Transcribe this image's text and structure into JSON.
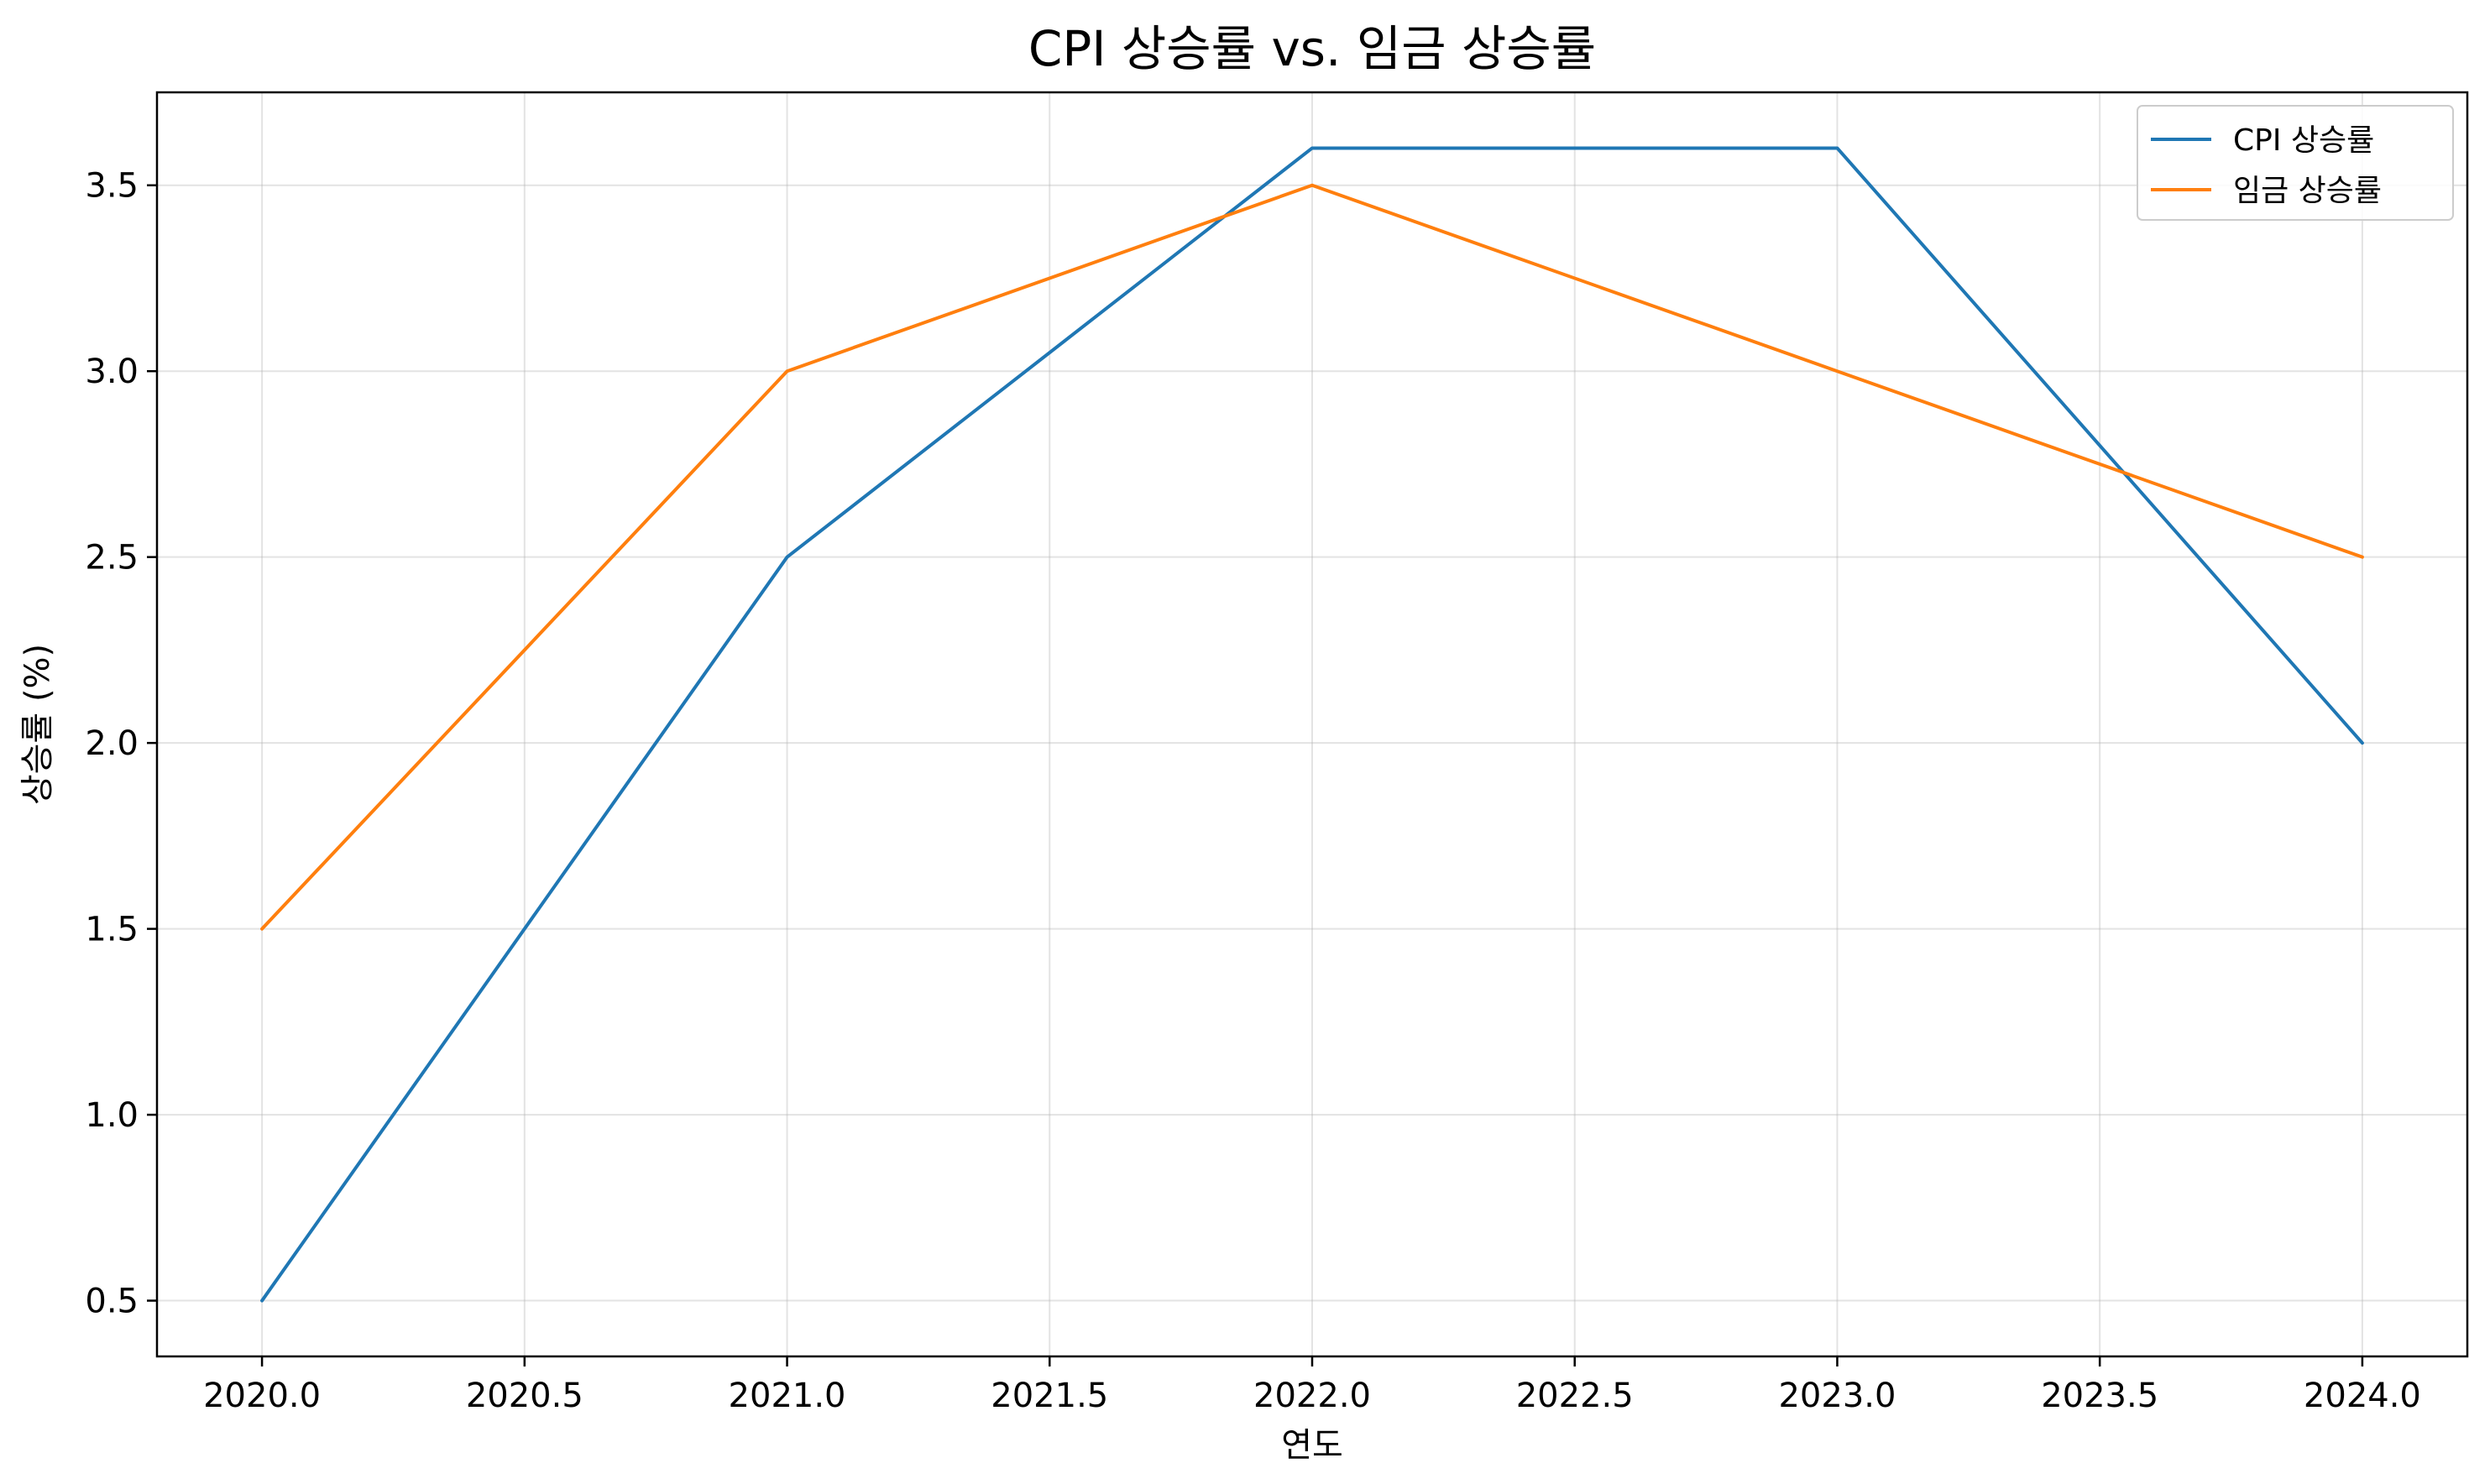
{
  "chart_data": {
    "type": "line",
    "title": "CPI 상승률 vs. 임금 상승률",
    "xlabel": "연도",
    "ylabel": "상승률 (%)",
    "x": [
      2020,
      2021,
      2022,
      2023,
      2024
    ],
    "xlim": [
      2019.8,
      2024.2
    ],
    "ylim": [
      0.35,
      3.75
    ],
    "xticks": [
      "2020.0",
      "2020.5",
      "2021.0",
      "2021.5",
      "2022.0",
      "2022.5",
      "2023.0",
      "2023.5",
      "2024.0"
    ],
    "yticks": [
      "0.5",
      "1.0",
      "1.5",
      "2.0",
      "2.5",
      "3.0",
      "3.5"
    ],
    "grid": true,
    "legend_position": "top-right",
    "series": [
      {
        "name": "CPI 상승률",
        "color": "#1f77b4",
        "values": [
          0.5,
          2.5,
          3.6,
          3.6,
          2.0
        ]
      },
      {
        "name": "임금 상승률",
        "color": "#ff7f0e",
        "values": [
          1.5,
          3.0,
          3.5,
          3.0,
          2.5
        ]
      }
    ]
  }
}
